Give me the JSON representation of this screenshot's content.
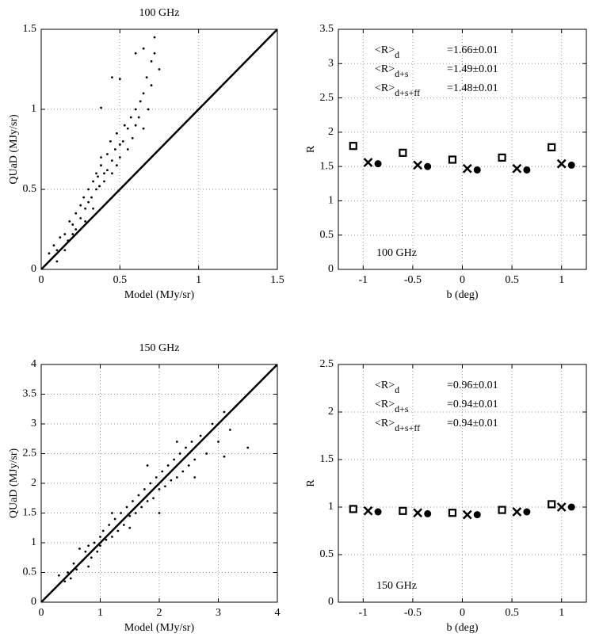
{
  "chart_data": [
    {
      "type": "scatter",
      "title": "100 GHz",
      "x_label": "Model (MJy/sr)",
      "y_label": "QUaD (MJy/sr)",
      "xlim": [
        0,
        1.5
      ],
      "ylim": [
        0,
        1.5
      ],
      "xticks": [
        0,
        0.5,
        1,
        1.5
      ],
      "yticks": [
        0,
        0.5,
        1,
        1.5
      ],
      "grid": true,
      "identity_line": true,
      "series": [
        {
          "marker": "dot",
          "color": "#000000",
          "x": [
            0.05,
            0.08,
            0.1,
            0.12,
            0.15,
            0.17,
            0.18,
            0.2,
            0.22,
            0.22,
            0.25,
            0.25,
            0.27,
            0.28,
            0.3,
            0.3,
            0.32,
            0.33,
            0.35,
            0.35,
            0.37,
            0.38,
            0.38,
            0.4,
            0.4,
            0.42,
            0.42,
            0.44,
            0.45,
            0.45,
            0.47,
            0.48,
            0.48,
            0.5,
            0.5,
            0.52,
            0.53,
            0.55,
            0.55,
            0.57,
            0.58,
            0.6,
            0.6,
            0.62,
            0.63,
            0.65,
            0.65,
            0.67,
            0.68,
            0.7,
            0.7,
            0.72,
            0.72,
            0.75,
            0.38,
            0.45,
            0.5,
            0.6,
            0.65,
            0.1,
            0.15,
            0.2,
            0.28,
            0.33,
            0.36
          ],
          "values": [
            0.1,
            0.15,
            0.12,
            0.2,
            0.22,
            0.18,
            0.3,
            0.28,
            0.35,
            0.25,
            0.4,
            0.32,
            0.45,
            0.38,
            0.5,
            0.42,
            0.45,
            0.55,
            0.6,
            0.5,
            0.52,
            0.65,
            0.7,
            0.6,
            0.55,
            0.72,
            0.62,
            0.8,
            0.68,
            0.6,
            0.75,
            0.85,
            0.65,
            0.7,
            0.78,
            0.8,
            0.9,
            0.75,
            0.88,
            0.95,
            0.82,
            0.9,
            1.0,
            0.95,
            1.05,
            0.88,
            1.1,
            1.2,
            1.0,
            1.15,
            1.3,
            1.45,
            1.35,
            1.25,
            1.01,
            1.2,
            1.19,
            1.35,
            1.38,
            0.05,
            0.12,
            0.22,
            0.3,
            0.38,
            0.58
          ]
        }
      ]
    },
    {
      "type": "scatter",
      "x_label": "b (deg)",
      "y_label": "R",
      "xlim": [
        -1.25,
        1.25
      ],
      "ylim": [
        0,
        3.5
      ],
      "xticks": [
        -1,
        -0.5,
        0,
        0.5,
        1
      ],
      "yticks": [
        0,
        0.5,
        1,
        1.5,
        2,
        2.5,
        3,
        3.5
      ],
      "grid": true,
      "band_label": "100 GHz",
      "annotations": [
        {
          "label": "<R>",
          "subscript": "d",
          "value": "=1.66±0.01"
        },
        {
          "label": "<R>",
          "subscript": "d+s",
          "value": "=1.49±0.01"
        },
        {
          "label": "<R>",
          "subscript": "d+s+ff",
          "value": "=1.48±0.01"
        }
      ],
      "series": [
        {
          "marker": "square",
          "color": "#000000",
          "x": [
            -1.1,
            -0.6,
            -0.1,
            0.4,
            0.9
          ],
          "values": [
            1.8,
            1.7,
            1.6,
            1.63,
            1.78
          ]
        },
        {
          "marker": "cross",
          "color": "#000000",
          "x": [
            -0.95,
            -0.45,
            0.05,
            0.55,
            1.0
          ],
          "values": [
            1.56,
            1.52,
            1.47,
            1.47,
            1.54
          ]
        },
        {
          "marker": "circle",
          "color": "#000000",
          "x": [
            -0.85,
            -0.35,
            0.15,
            0.65,
            1.1
          ],
          "values": [
            1.54,
            1.5,
            1.45,
            1.45,
            1.52
          ]
        }
      ]
    },
    {
      "type": "scatter",
      "title": "150 GHz",
      "x_label": "Model (MJy/sr)",
      "y_label": "QUaD (MJy/sr)",
      "xlim": [
        0,
        4
      ],
      "ylim": [
        0,
        4
      ],
      "xticks": [
        0,
        1,
        2,
        3,
        4
      ],
      "yticks": [
        0,
        0.5,
        1,
        1.5,
        2,
        2.5,
        3,
        3.5,
        4
      ],
      "grid": true,
      "identity_line": true,
      "series": [
        {
          "marker": "dot",
          "color": "#000000",
          "x": [
            0.3,
            0.4,
            0.45,
            0.5,
            0.55,
            0.6,
            0.65,
            0.7,
            0.75,
            0.8,
            0.85,
            0.9,
            0.95,
            1.0,
            1.0,
            1.05,
            1.1,
            1.15,
            1.2,
            1.25,
            1.3,
            1.35,
            1.4,
            1.45,
            1.5,
            1.55,
            1.6,
            1.65,
            1.7,
            1.75,
            1.8,
            1.85,
            1.9,
            1.95,
            2.0,
            2.05,
            2.1,
            2.15,
            2.2,
            2.25,
            2.3,
            2.35,
            2.4,
            2.45,
            2.5,
            2.55,
            2.6,
            2.7,
            2.8,
            2.9,
            3.0,
            3.1,
            3.2,
            3.3,
            3.5,
            3.1,
            2.0,
            1.8,
            1.5,
            1.2,
            0.8,
            2.6,
            2.3
          ],
          "values": [
            0.45,
            0.35,
            0.5,
            0.4,
            0.65,
            0.55,
            0.9,
            0.7,
            0.85,
            0.95,
            0.75,
            1.0,
            0.85,
            1.1,
            0.95,
            1.2,
            1.05,
            1.3,
            1.1,
            1.4,
            1.2,
            1.5,
            1.3,
            1.6,
            1.45,
            1.7,
            1.5,
            1.8,
            1.6,
            1.9,
            1.7,
            2.0,
            1.75,
            2.1,
            1.9,
            2.2,
            1.95,
            2.3,
            2.05,
            2.4,
            2.1,
            2.5,
            2.2,
            2.6,
            2.3,
            2.7,
            2.4,
            2.8,
            2.5,
            3.0,
            2.7,
            3.2,
            2.9,
            3.3,
            2.6,
            2.45,
            1.5,
            2.3,
            1.25,
            1.5,
            0.6,
            2.1,
            2.7
          ]
        }
      ]
    },
    {
      "type": "scatter",
      "x_label": "b (deg)",
      "y_label": "R",
      "xlim": [
        -1.25,
        1.25
      ],
      "ylim": [
        0,
        2.5
      ],
      "xticks": [
        -1,
        -0.5,
        0,
        0.5,
        1
      ],
      "yticks": [
        0,
        0.5,
        1,
        1.5,
        2,
        2.5
      ],
      "grid": true,
      "band_label": "150 GHz",
      "annotations": [
        {
          "label": "<R>",
          "subscript": "d",
          "value": "=0.96±0.01"
        },
        {
          "label": "<R>",
          "subscript": "d+s",
          "value": "=0.94±0.01"
        },
        {
          "label": "<R>",
          "subscript": "d+s+ff",
          "value": "=0.94±0.01"
        }
      ],
      "series": [
        {
          "marker": "square",
          "color": "#000000",
          "x": [
            -1.1,
            -0.6,
            -0.1,
            0.4,
            0.9
          ],
          "values": [
            0.98,
            0.96,
            0.94,
            0.97,
            1.03
          ]
        },
        {
          "marker": "cross",
          "color": "#000000",
          "x": [
            -0.95,
            -0.45,
            0.05,
            0.55,
            1.0
          ],
          "values": [
            0.96,
            0.94,
            0.92,
            0.95,
            1.0
          ]
        },
        {
          "marker": "circle",
          "color": "#000000",
          "x": [
            -0.85,
            -0.35,
            0.15,
            0.65,
            1.1
          ],
          "values": [
            0.95,
            0.93,
            0.92,
            0.95,
            1.0
          ]
        }
      ]
    }
  ]
}
